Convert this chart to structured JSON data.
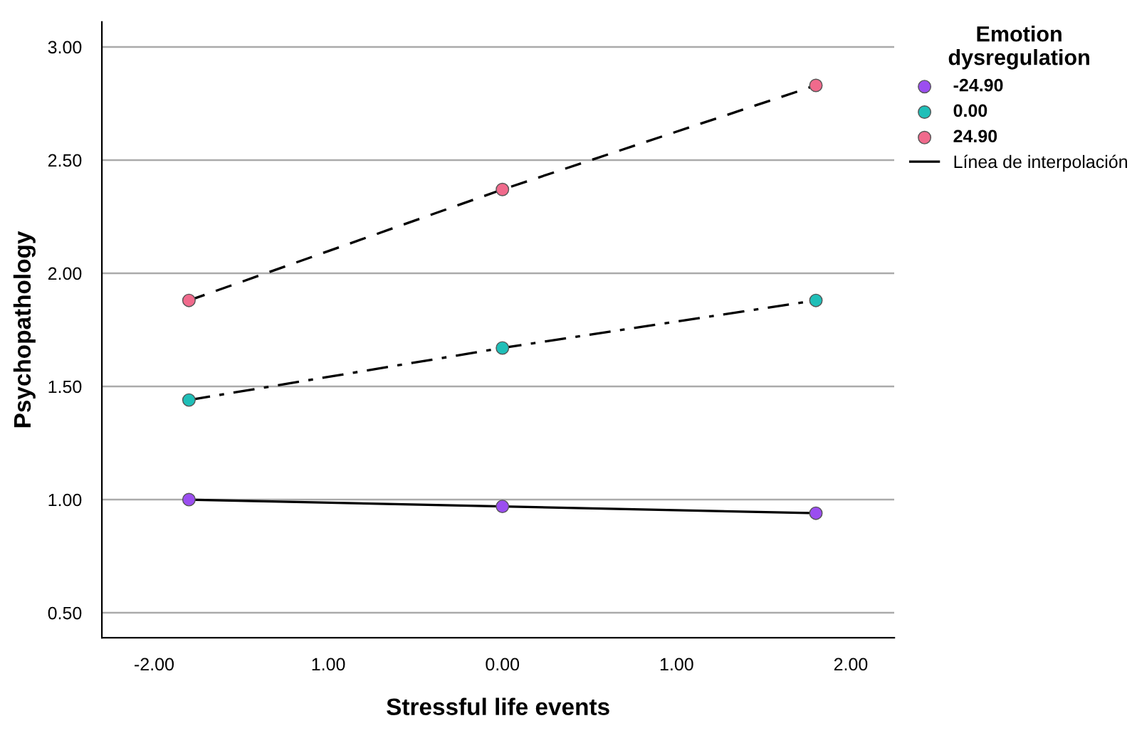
{
  "chart_data": {
    "type": "scatter",
    "xlabel": "Stressful life events",
    "ylabel": "Psychopathology",
    "legend_title": "Emotion\ndysregulation",
    "legend": "top right",
    "grid": "y",
    "xlim": [
      -2.3,
      2.25
    ],
    "xticks": [
      {
        "value": -2,
        "label": "-2.00"
      },
      {
        "value": -1,
        "label": "1.00"
      },
      {
        "value": 0,
        "label": "0.00"
      },
      {
        "value": 1,
        "label": "1.00"
      },
      {
        "value": 2,
        "label": "2.00"
      }
    ],
    "ylim": [
      0.39,
      3.11
    ],
    "yticks": [
      {
        "value": 0.5,
        "label": "0.50"
      },
      {
        "value": 1,
        "label": "1.00"
      },
      {
        "value": 1.5,
        "label": "1.50"
      },
      {
        "value": 2,
        "label": "2.00"
      },
      {
        "value": 2.5,
        "label": "2.50"
      },
      {
        "value": 3,
        "label": "3.00"
      }
    ],
    "series": [
      {
        "marker": "circle",
        "name": "-24.90",
        "color": "#9b4ef0",
        "x": [
          -1.8,
          0,
          1.8
        ],
        "values": [
          1.0,
          0.97,
          0.94
        ]
      },
      {
        "marker": "circle",
        "name": "0.00",
        "color": "#1fbfb8",
        "x": [
          -1.8,
          0,
          1.8
        ],
        "values": [
          1.44,
          1.67,
          1.88
        ]
      },
      {
        "marker": "circle",
        "name": "24.90",
        "color": "#f06a8c",
        "x": [
          -1.8,
          0,
          1.8
        ],
        "values": [
          1.88,
          2.37,
          2.83
        ]
      },
      {
        "type": "line",
        "name": "Línea de interpolación",
        "color": "#000000",
        "marker": "none",
        "line_style": "solid",
        "x": [
          -1.8,
          0,
          1.8
        ],
        "values": [
          1.0,
          0.97,
          0.94
        ]
      },
      {
        "type": "line",
        "color": "#000000",
        "marker": "none",
        "line_style": "dashdot",
        "x": [
          -1.8,
          0,
          1.8
        ],
        "values": [
          1.44,
          1.67,
          1.88
        ]
      },
      {
        "type": "line",
        "color": "#000000",
        "marker": "none",
        "line_style": "dashed",
        "x": [
          -1.8,
          0,
          1.8
        ],
        "values": [
          1.88,
          2.37,
          2.83
        ]
      }
    ]
  }
}
